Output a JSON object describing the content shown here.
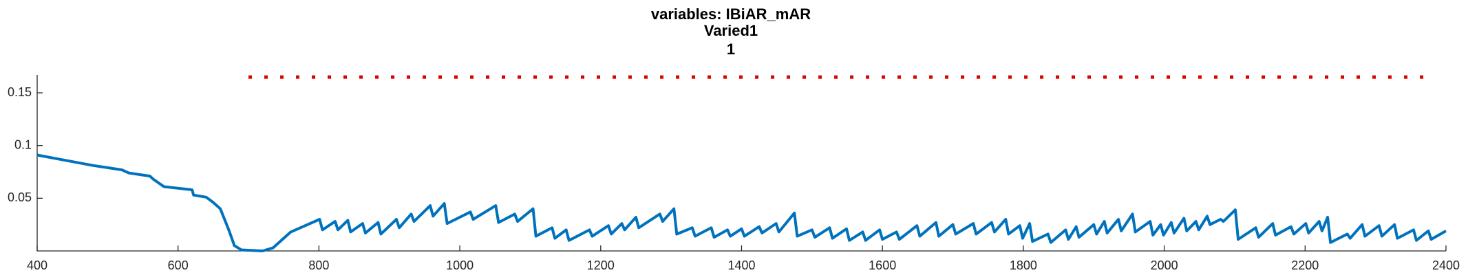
{
  "chart_data": {
    "type": "line",
    "title": "variables: IBiAR_mAR",
    "subtitles": [
      "Varied1",
      "1"
    ],
    "xlim": [
      400,
      2400
    ],
    "xticks": [
      400,
      600,
      800,
      1000,
      1200,
      1400,
      1600,
      1800,
      2000,
      2200,
      2400
    ],
    "ylim": [
      0,
      0.167
    ],
    "yticks": [
      0.05,
      0.1,
      0.15
    ],
    "grid": false,
    "series": [
      {
        "color": "#e00000",
        "line_style": "dotted",
        "line_width": 5,
        "x": [
          700,
          2380
        ],
        "values": [
          0.165,
          0.165
        ]
      },
      {
        "color": "#0072bd",
        "line_style": "solid",
        "line_width": 4,
        "x": [
          400,
          440,
          480,
          520,
          530,
          560,
          565,
          580,
          620,
          622,
          640,
          650,
          660,
          666,
          672,
          680,
          690,
          720,
          735,
          760,
          801,
          805,
          823,
          827,
          841,
          845,
          862,
          866,
          884,
          888,
          910,
          914,
          931,
          935,
          958,
          962,
          978,
          982,
          1015,
          1019,
          1051,
          1055,
          1078,
          1082,
          1104,
          1108,
          1131,
          1135,
          1151,
          1155,
          1184,
          1188,
          1211,
          1215,
          1230,
          1234,
          1250,
          1254,
          1284,
          1288,
          1304,
          1308,
          1330,
          1334,
          1357,
          1361,
          1380,
          1384,
          1400,
          1404,
          1425,
          1429,
          1449,
          1453,
          1475,
          1479,
          1500,
          1504,
          1525,
          1529,
          1549,
          1553,
          1572,
          1576,
          1596,
          1600,
          1620,
          1624,
          1649,
          1653,
          1676,
          1680,
          1700,
          1704,
          1729,
          1733,
          1755,
          1759,
          1775,
          1779,
          1795,
          1799,
          1809,
          1813,
          1835,
          1839,
          1860,
          1864,
          1875,
          1879,
          1900,
          1904,
          1915,
          1919,
          1935,
          1939,
          1955,
          1959,
          1980,
          1984,
          1995,
          1999,
          2010,
          2014,
          2028,
          2032,
          2045,
          2049,
          2061,
          2065,
          2080,
          2084,
          2101,
          2105,
          2130,
          2134,
          2154,
          2158,
          2180,
          2184,
          2201,
          2205,
          2220,
          2224,
          2232,
          2236,
          2260,
          2264,
          2281,
          2285,
          2305,
          2309,
          2327,
          2331,
          2354,
          2358,
          2375,
          2379,
          2400
        ],
        "values": [
          0.091,
          0.086,
          0.081,
          0.077,
          0.074,
          0.071,
          0.068,
          0.061,
          0.058,
          0.053,
          0.051,
          0.046,
          0.04,
          0.03,
          0.02,
          0.005,
          0.001,
          0.0,
          0.003,
          0.018,
          0.03,
          0.02,
          0.028,
          0.02,
          0.029,
          0.018,
          0.026,
          0.017,
          0.027,
          0.016,
          0.03,
          0.022,
          0.035,
          0.028,
          0.043,
          0.033,
          0.045,
          0.026,
          0.037,
          0.03,
          0.043,
          0.027,
          0.035,
          0.028,
          0.04,
          0.014,
          0.022,
          0.012,
          0.02,
          0.01,
          0.02,
          0.014,
          0.024,
          0.016,
          0.026,
          0.02,
          0.032,
          0.022,
          0.035,
          0.028,
          0.04,
          0.016,
          0.022,
          0.014,
          0.022,
          0.013,
          0.02,
          0.014,
          0.021,
          0.014,
          0.023,
          0.017,
          0.026,
          0.018,
          0.036,
          0.014,
          0.02,
          0.013,
          0.022,
          0.012,
          0.021,
          0.01,
          0.018,
          0.01,
          0.02,
          0.011,
          0.018,
          0.011,
          0.024,
          0.014,
          0.027,
          0.014,
          0.025,
          0.016,
          0.026,
          0.016,
          0.027,
          0.018,
          0.03,
          0.016,
          0.024,
          0.012,
          0.026,
          0.009,
          0.016,
          0.008,
          0.02,
          0.011,
          0.023,
          0.013,
          0.025,
          0.016,
          0.028,
          0.017,
          0.03,
          0.019,
          0.035,
          0.018,
          0.028,
          0.015,
          0.025,
          0.015,
          0.027,
          0.017,
          0.031,
          0.019,
          0.028,
          0.02,
          0.033,
          0.025,
          0.03,
          0.028,
          0.039,
          0.011,
          0.022,
          0.013,
          0.026,
          0.015,
          0.023,
          0.016,
          0.026,
          0.017,
          0.028,
          0.019,
          0.032,
          0.008,
          0.016,
          0.012,
          0.025,
          0.014,
          0.024,
          0.014,
          0.025,
          0.012,
          0.02,
          0.01,
          0.019,
          0.011,
          0.019
        ]
      }
    ]
  }
}
